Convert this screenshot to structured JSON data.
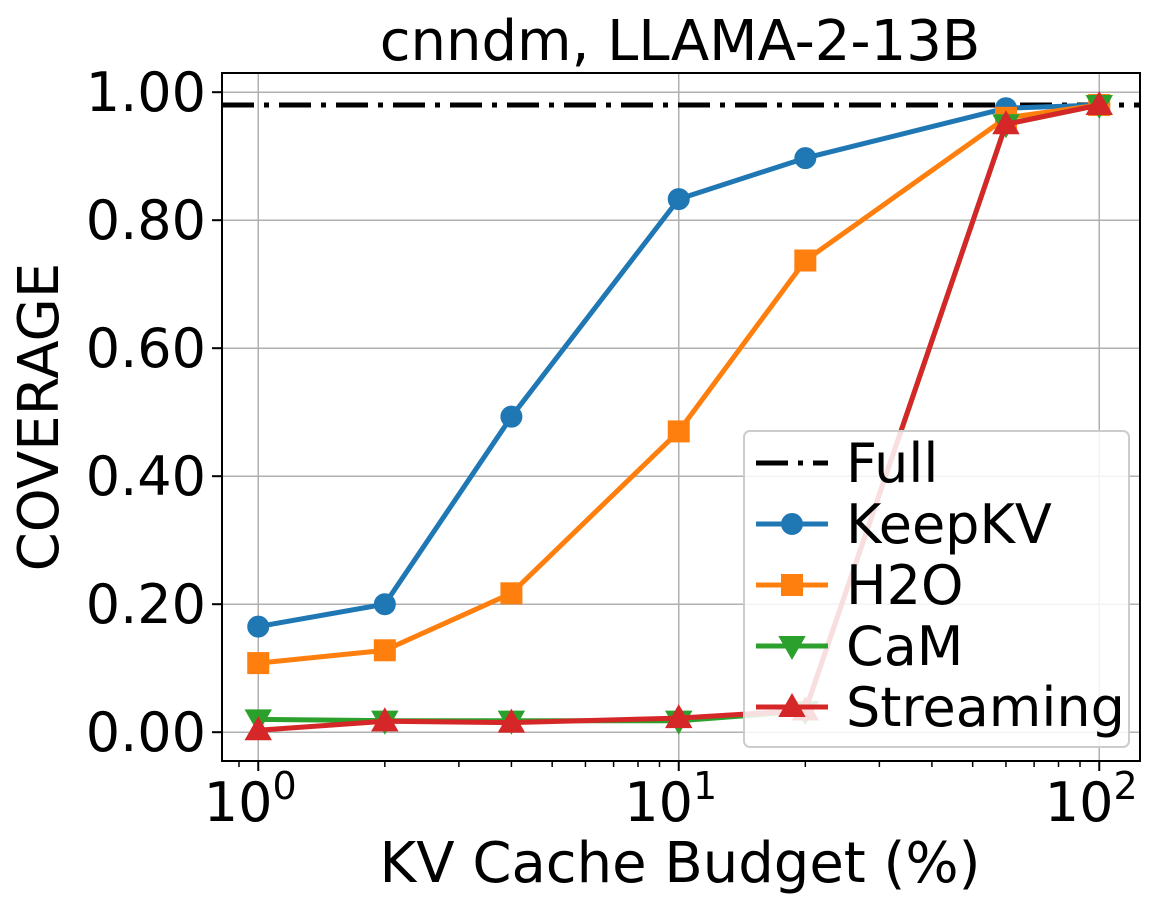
{
  "chart_data": {
    "type": "line",
    "title": "cnndm, LLAMA-2-13B",
    "xlabel": "KV Cache Budget (%)",
    "ylabel": "COVERAGE",
    "xscale": "log",
    "xlim": [
      0.82,
      125
    ],
    "ylim": [
      -0.045,
      1.03
    ],
    "x_ticks": [
      {
        "value": 1,
        "base": "10",
        "exp": "0"
      },
      {
        "value": 10,
        "base": "10",
        "exp": "1"
      },
      {
        "value": 100,
        "base": "10",
        "exp": "2"
      }
    ],
    "y_ticks": [
      {
        "value": 0.0,
        "label": "0.00"
      },
      {
        "value": 0.2,
        "label": "0.20"
      },
      {
        "value": 0.4,
        "label": "0.40"
      },
      {
        "value": 0.6,
        "label": "0.60"
      },
      {
        "value": 0.8,
        "label": "0.80"
      },
      {
        "value": 1.0,
        "label": "1.00"
      }
    ],
    "grid": true,
    "legend_position": "lower-right",
    "reference": {
      "name": "Full",
      "value": 0.98,
      "color": "#000000"
    },
    "series": [
      {
        "name": "KeepKV",
        "color": "#1f77b4",
        "marker": "circle",
        "x": [
          1,
          2,
          4,
          10,
          20,
          60,
          100
        ],
        "y": [
          0.165,
          0.2,
          0.493,
          0.833,
          0.897,
          0.975,
          0.98
        ]
      },
      {
        "name": "H2O",
        "color": "#ff7f0e",
        "marker": "square",
        "x": [
          1,
          2,
          4,
          10,
          20,
          60,
          100
        ],
        "y": [
          0.108,
          0.128,
          0.217,
          0.47,
          0.737,
          0.96,
          0.98
        ]
      },
      {
        "name": "CaM",
        "color": "#2ca02c",
        "marker": "triangle-down",
        "x": [
          1,
          2,
          4,
          10,
          20,
          60,
          100
        ],
        "y": [
          0.02,
          0.018,
          0.018,
          0.018,
          0.033,
          0.95,
          0.98
        ]
      },
      {
        "name": "Streaming",
        "color": "#d62728",
        "marker": "triangle-up",
        "x": [
          1,
          2,
          4,
          10,
          20,
          60,
          100
        ],
        "y": [
          0.003,
          0.017,
          0.015,
          0.022,
          0.034,
          0.95,
          0.98
        ]
      }
    ]
  }
}
